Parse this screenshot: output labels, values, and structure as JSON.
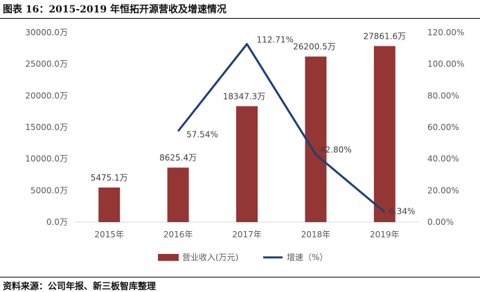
{
  "figure": {
    "title": "图表 16：2015-2019 年恒拓开源营收及增速情况",
    "source": "资料来源：公司年报、新三板智库整理"
  },
  "chart_data": {
    "type": "bar",
    "categories": [
      "2015年",
      "2016年",
      "2017年",
      "2018年",
      "2019年"
    ],
    "series": [
      {
        "name": "营业收入(万元)",
        "type": "bar",
        "axis": "left",
        "color": "#943634",
        "values": [
          5475.1,
          8625.4,
          18347.3,
          26200.5,
          27861.6
        ],
        "labels": [
          "5475.1万",
          "8625.4万",
          "18347.3万",
          "26200.5万",
          "27861.6万"
        ]
      },
      {
        "name": "增速（%）",
        "type": "line",
        "axis": "right",
        "color": "#1f3f73",
        "values": [
          null,
          57.54,
          112.71,
          42.8,
          6.34
        ],
        "labels": [
          "",
          "57.54%",
          "112.71%",
          "42.80%",
          "6.34%"
        ]
      }
    ],
    "y_left": {
      "min": 0,
      "max": 30000,
      "ticks": [
        0,
        5000,
        10000,
        15000,
        20000,
        25000,
        30000
      ],
      "tick_labels": [
        "0.0万",
        "5000.0万",
        "10000.0万",
        "15000.0万",
        "20000.0万",
        "25000.0万",
        "30000.0万"
      ]
    },
    "y_right": {
      "min": 0,
      "max": 120,
      "ticks": [
        0,
        20,
        40,
        60,
        80,
        100,
        120
      ],
      "tick_labels": [
        "0.00%",
        "20.00%",
        "40.00%",
        "60.00%",
        "80.00%",
        "100.00%",
        "120.00%"
      ]
    },
    "legend_position": "bottom",
    "grid": false
  }
}
